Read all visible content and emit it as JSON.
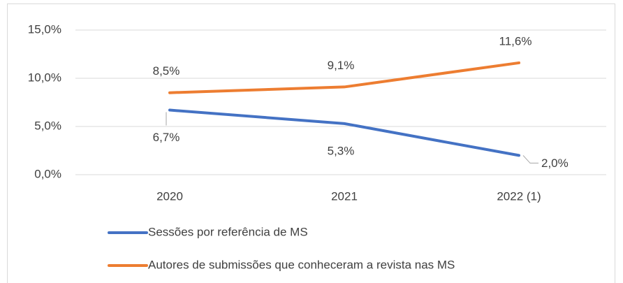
{
  "chart_data": {
    "type": "line",
    "categories": [
      "2020",
      "2021",
      "2022 (1)"
    ],
    "series": [
      {
        "name": "Sessões por referência de MS",
        "color": "#4472c4",
        "values": [
          6.7,
          5.3,
          2.0
        ],
        "value_labels": [
          "6,7%",
          "5,3%",
          "2,0%"
        ]
      },
      {
        "name": "Autores de submissões que conheceram a revista nas MS",
        "color": "#ed7d31",
        "values": [
          8.5,
          9.1,
          11.6
        ],
        "value_labels": [
          "8,5%",
          "9,1%",
          "11,6%"
        ]
      }
    ],
    "ylim": [
      0,
      15
    ],
    "yticks": [
      {
        "value": 0,
        "label": "0,0%"
      },
      {
        "value": 5,
        "label": "5,0%"
      },
      {
        "value": 10,
        "label": "10,0%"
      },
      {
        "value": 15,
        "label": "15,0%"
      }
    ],
    "grid": true
  }
}
